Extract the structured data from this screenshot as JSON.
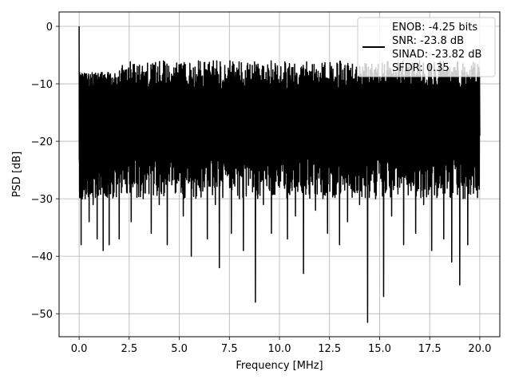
{
  "chart_data": {
    "type": "line",
    "title": "",
    "xlabel": "Frequency [MHz]",
    "ylabel": "PSD [dB]",
    "xlim": [
      -1.0,
      21.0
    ],
    "ylim": [
      -54.0,
      2.5
    ],
    "xticks": [
      0.0,
      2.5,
      5.0,
      7.5,
      10.0,
      12.5,
      15.0,
      17.5,
      20.0
    ],
    "xtick_labels": [
      "0.0",
      "2.5",
      "5.0",
      "7.5",
      "10.0",
      "12.5",
      "15.0",
      "17.5",
      "20.0"
    ],
    "yticks": [
      0,
      -10,
      -20,
      -30,
      -40,
      -50
    ],
    "ytick_labels": [
      "0",
      "−10",
      "−20",
      "−30",
      "−40",
      "−50"
    ],
    "grid": true,
    "legend_position": "top-right",
    "line_color": "#000000",
    "legend_lines": [
      "ENOB: -4.25 bits",
      "SNR: -23.8 dB",
      "SINAD: -23.82 dB",
      "SFDR: 0.35"
    ],
    "series": [
      {
        "x": [
          0.0,
          0.05,
          0.1,
          0.15,
          0.2,
          0.3,
          0.4,
          0.5,
          0.6,
          0.7,
          0.8,
          0.9,
          1.0,
          1.1,
          1.2,
          1.3,
          1.4,
          1.5,
          1.6,
          1.8,
          2.0,
          2.2,
          2.4,
          2.6,
          2.8,
          3.0,
          3.2,
          3.4,
          3.6,
          3.8,
          4.0,
          4.2,
          4.4,
          4.6,
          4.8,
          5.0,
          5.2,
          5.4,
          5.6,
          5.8,
          6.0,
          6.2,
          6.4,
          6.6,
          6.8,
          7.0,
          7.2,
          7.4,
          7.6,
          7.8,
          8.0,
          8.2,
          8.4,
          8.6,
          8.8,
          9.0,
          9.2,
          9.4,
          9.6,
          9.8,
          10.0,
          10.2,
          10.4,
          10.6,
          10.8,
          11.0,
          11.2,
          11.4,
          11.6,
          11.8,
          12.0,
          12.2,
          12.4,
          12.6,
          12.8,
          13.0,
          13.2,
          13.4,
          13.6,
          13.8,
          14.0,
          14.2,
          14.4,
          14.6,
          14.8,
          15.0,
          15.2,
          15.4,
          15.6,
          15.8,
          16.0,
          16.2,
          16.4,
          16.6,
          16.8,
          17.0,
          17.2,
          17.4,
          17.6,
          17.8,
          18.0,
          18.2,
          18.4,
          18.6,
          18.8,
          19.0,
          19.2,
          19.4,
          19.6,
          19.8,
          20.0
        ],
        "y": [
          0.0,
          -24.0,
          -38.0,
          -12.0,
          -27.0,
          -30.0,
          -10.0,
          -34.0,
          -22.0,
          -31.0,
          -14.0,
          -37.0,
          -12.0,
          -26.0,
          -39.0,
          -16.0,
          -28.0,
          -38.0,
          -13.0,
          -25.0,
          -37.0,
          -11.0,
          -29.0,
          -34.0,
          -10.0,
          -22.0,
          -30.0,
          -13.0,
          -36.0,
          -9.0,
          -31.0,
          -24.0,
          -38.0,
          -14.0,
          -29.0,
          -12.0,
          -33.0,
          -20.0,
          -40.0,
          -10.0,
          -28.0,
          -22.0,
          -37.0,
          -9.0,
          -31.0,
          -42.0,
          -12.0,
          -26.0,
          -36.0,
          -8.0,
          -30.0,
          -39.0,
          -11.0,
          -25.0,
          -48.0,
          -10.0,
          -31.0,
          -14.0,
          -36.0,
          -7.0,
          -28.0,
          -20.0,
          -37.0,
          -9.0,
          -33.0,
          -12.0,
          -43.0,
          -8.0,
          -27.0,
          -32.0,
          -11.0,
          -21.0,
          -36.0,
          -7.0,
          -29.0,
          -38.0,
          -12.0,
          -34.0,
          -10.0,
          -26.0,
          -31.0,
          -9.0,
          -51.5,
          -12.0,
          -30.0,
          -10.0,
          -47.0,
          -14.0,
          -33.0,
          -8.0,
          -28.0,
          -38.0,
          -11.0,
          -27.0,
          -36.0,
          -6.0,
          -31.0,
          -13.0,
          -39.0,
          -10.0,
          -24.0,
          -37.0,
          -9.0,
          -41.0,
          -13.0,
          -45.0,
          -8.0,
          -38.0,
          -14.0,
          -28.0,
          -19.0
        ]
      }
    ]
  }
}
